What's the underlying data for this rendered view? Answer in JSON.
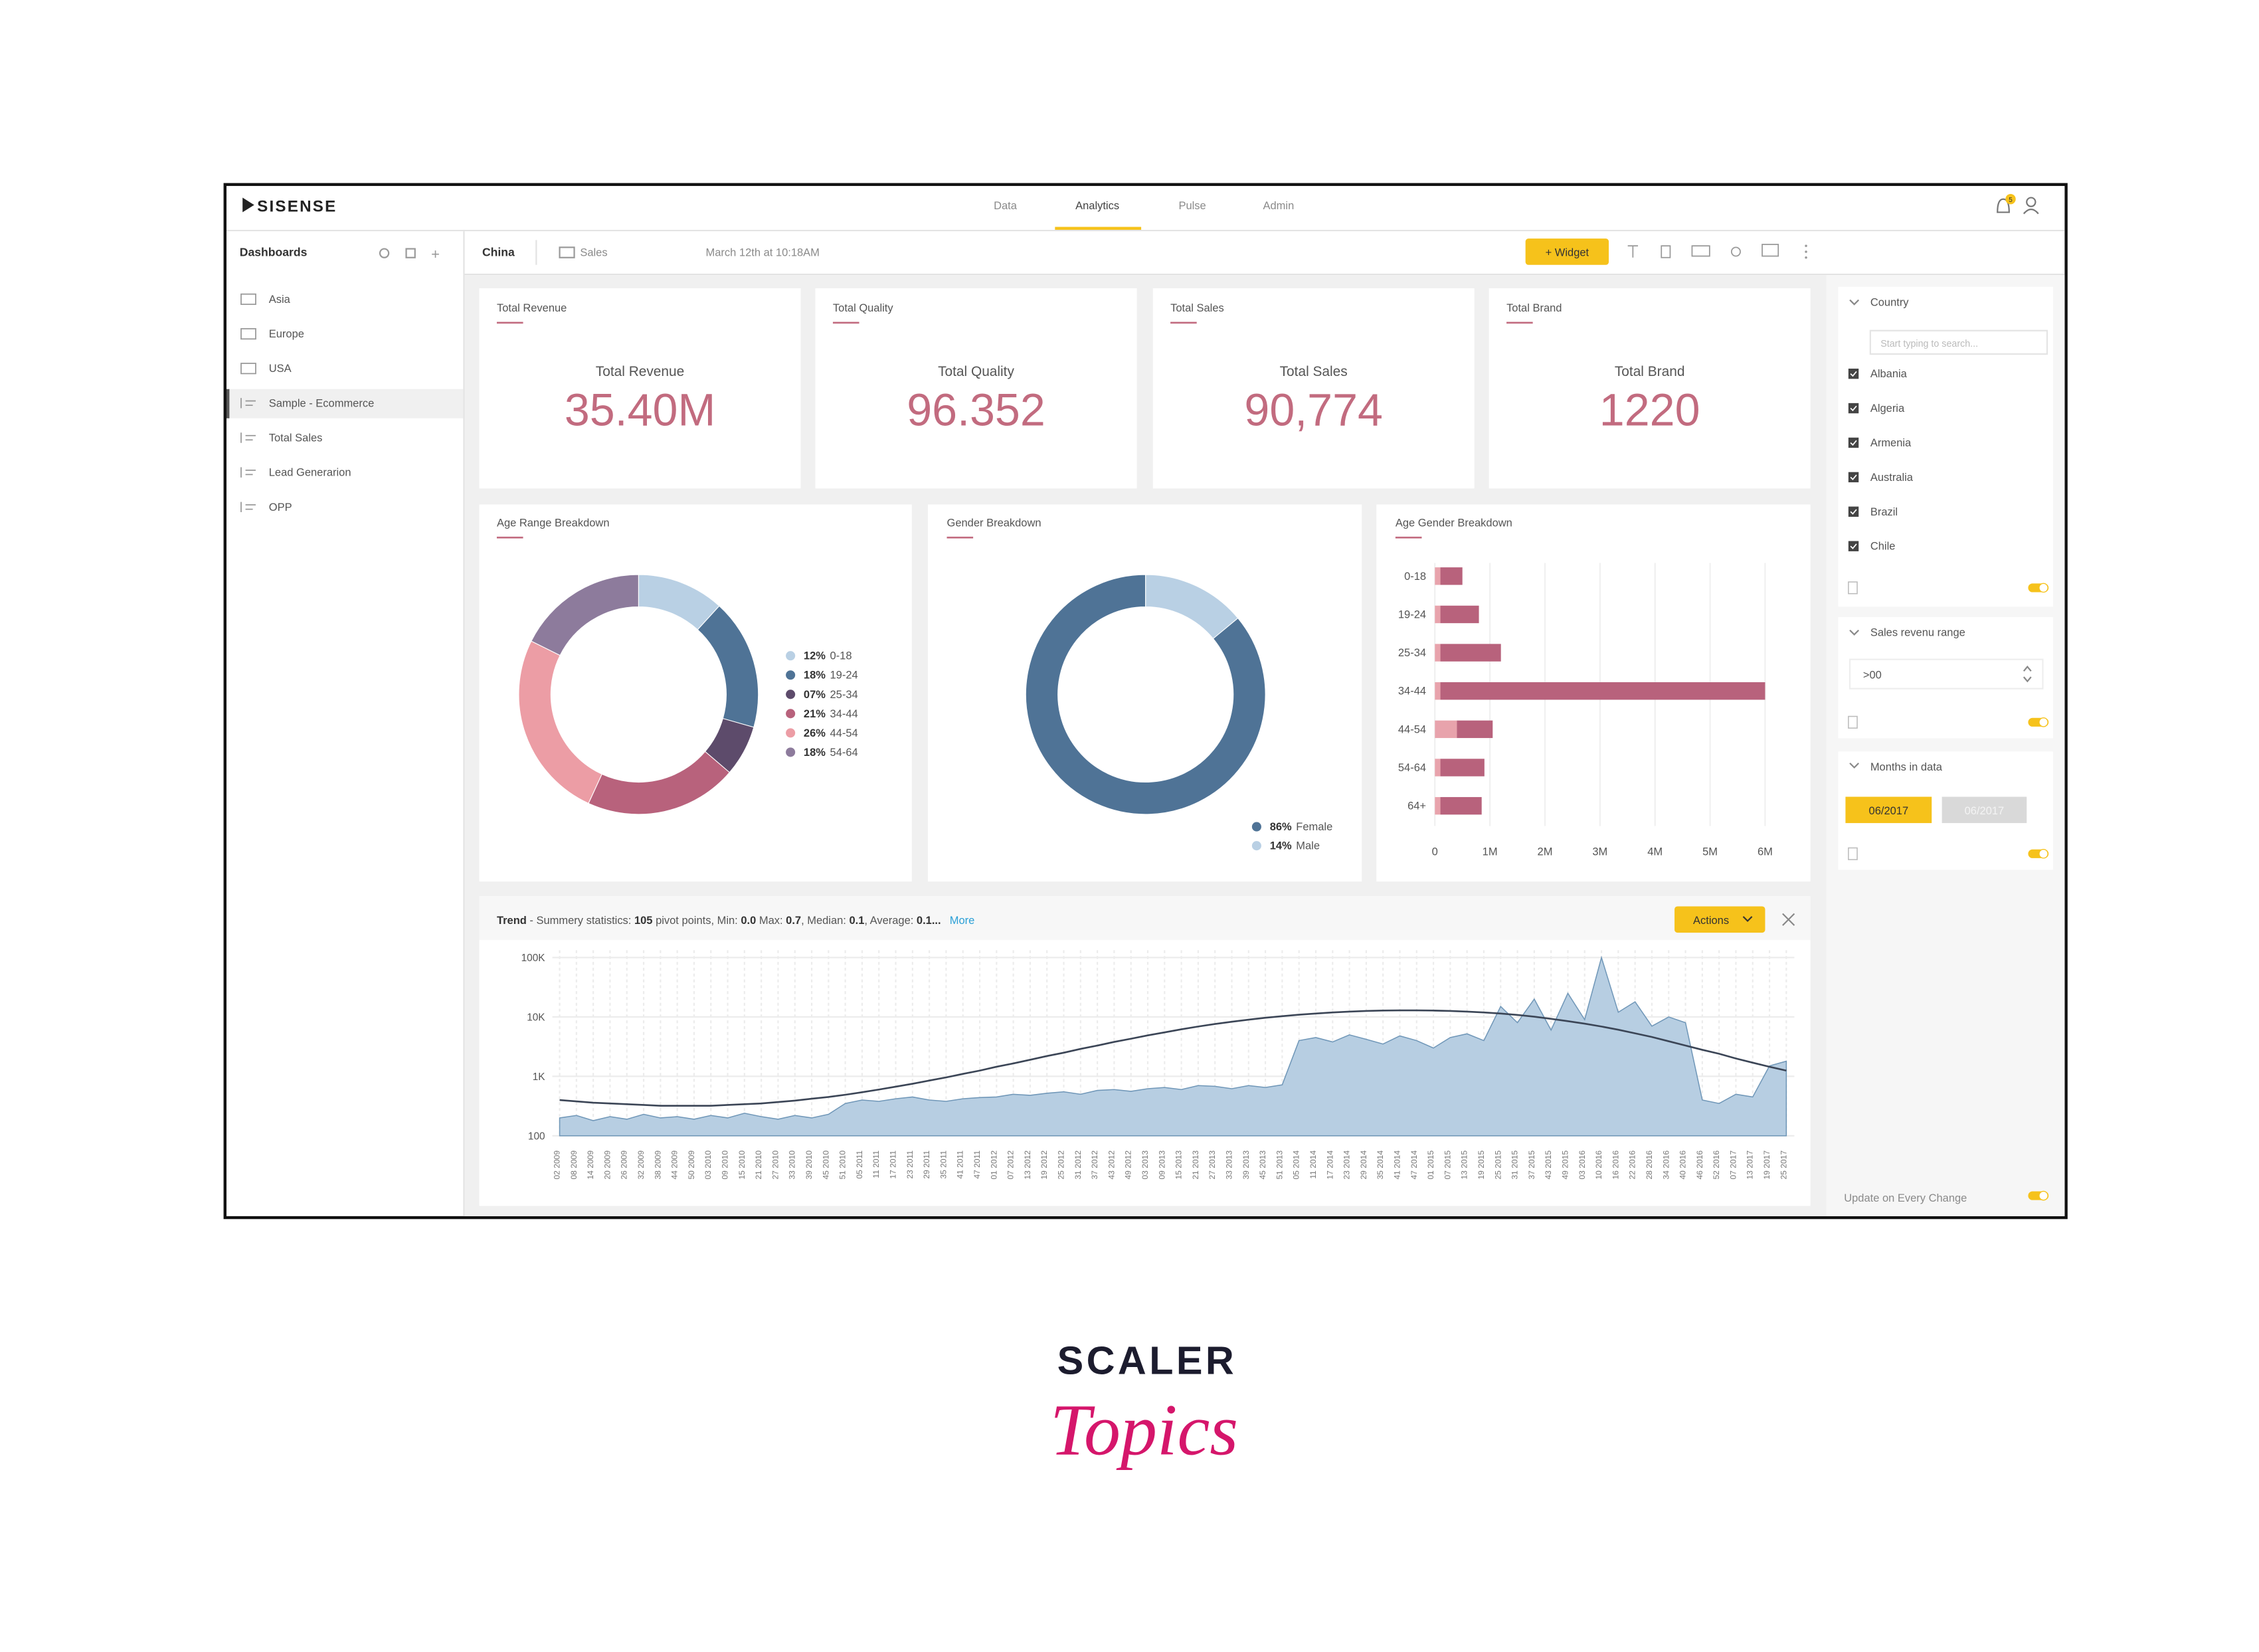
{
  "header": {
    "logo": "SISENSE",
    "tabs": [
      "Data",
      "Analytics",
      "Pulse",
      "Admin"
    ],
    "notifications": "5"
  },
  "sidebar": {
    "title": "Dashboards",
    "items": [
      "Asia",
      "Europe",
      "USA",
      "Sample - Ecommerce",
      "Total Sales",
      "Lead Generarion",
      "OPP"
    ]
  },
  "toolbar": {
    "dashboard": "China",
    "folder": "Sales",
    "date": "March 12th at 10:18AM",
    "widget_button": "+ Widget"
  },
  "kpis": [
    {
      "title": "Total Revenue",
      "label": "Total Revenue",
      "value": "35.40M"
    },
    {
      "title": "Total Quality",
      "label": "Total Quality",
      "value": "96.352"
    },
    {
      "title": "Total Sales",
      "label": "Total Sales",
      "value": "90,774"
    },
    {
      "title": "Total Brand",
      "label": "Total Brand",
      "value": "1220"
    }
  ],
  "age_range": {
    "type": "donut",
    "title": "Age Range Breakdown",
    "categories": [
      "0-18",
      "19-24",
      "25-34",
      "34-44",
      "44-54",
      "54-64"
    ],
    "values": [
      12,
      18,
      7,
      21,
      26,
      18
    ],
    "value_labels": [
      "12%",
      "18%",
      "07%",
      "21%",
      "26%",
      "18%"
    ],
    "colors": [
      "#b9d0e4",
      "#4f7396",
      "#5d4b6b",
      "#b8627c",
      "#ec9da5",
      "#8d7b9c"
    ]
  },
  "gender": {
    "type": "donut",
    "title": "Gender Breakdown",
    "categories": [
      "Female",
      "Male"
    ],
    "values": [
      86,
      14
    ],
    "value_labels": [
      "86%",
      "14%"
    ],
    "colors": [
      "#4f7396",
      "#b9d0e4"
    ]
  },
  "age_gender": {
    "type": "hbar",
    "title": "Age Gender Breakdown",
    "categories": [
      "0-18",
      "19-24",
      "25-34",
      "34-44",
      "44-54",
      "54-64",
      "64+"
    ],
    "series": [
      {
        "color": "#e8a3ac",
        "values": [
          100000,
          100000,
          100000,
          100000,
          400000,
          100000,
          100000
        ]
      },
      {
        "color": "#b8627c",
        "values": [
          400000,
          700000,
          1100000,
          5900000,
          650000,
          800000,
          750000
        ]
      }
    ],
    "xlim": [
      0,
      6000000
    ],
    "xticks": [
      0,
      {
        "value": 1000000,
        "label": "1M"
      },
      {
        "value": 2000000,
        "label": "2M"
      },
      {
        "value": 3000000,
        "label": "3M"
      },
      {
        "value": 4000000,
        "label": "4M"
      },
      {
        "value": 5000000,
        "label": "5M"
      },
      {
        "value": 6000000,
        "label": "6M"
      }
    ],
    "grid": true
  },
  "trend": {
    "type": "area",
    "title": "Trend",
    "summary_parts": [
      " - Summery statistics: ",
      "105",
      " pivot points, Min: ",
      "0.0",
      " Max: ",
      "0.7",
      ", Median: ",
      "0.1",
      ", Average: ",
      "0.1..."
    ],
    "more": "More",
    "actions": "Actions",
    "categories": [
      "02 2009",
      "08 2009",
      "14 2009",
      "20 2009",
      "26 2009",
      "32 2009",
      "38 2009",
      "44 2009",
      "50 2009",
      "03 2010",
      "09 2010",
      "15 2010",
      "21 2010",
      "27 2010",
      "33 2010",
      "39 2010",
      "45 2010",
      "51 2010",
      "05 2011",
      "11 2011",
      "17 2011",
      "23 2011",
      "29 2011",
      "35 2011",
      "41 2011",
      "47 2011",
      "01 2012",
      "07 2012",
      "13 2012",
      "19 2012",
      "25 2012",
      "31 2012",
      "37 2012",
      "43 2012",
      "49 2012",
      "03 2013",
      "09 2013",
      "15 2013",
      "21 2013",
      "27 2013",
      "33 2013",
      "39 2013",
      "45 2013",
      "51 2013",
      "05 2014",
      "11 2014",
      "17 2014",
      "23 2014",
      "29 2014",
      "35 2014",
      "41 2014",
      "47 2014",
      "01 2015",
      "07 2015",
      "13 2015",
      "19 2015",
      "25 2015",
      "31 2015",
      "37 2015",
      "43 2015",
      "49 2015",
      "03 2016",
      "10 2016",
      "16 2016",
      "22 2016",
      "28 2016",
      "34 2016",
      "40 2016",
      "46 2016",
      "52 2016",
      "07 2017",
      "13 2017",
      "19 2017",
      "25 2017"
    ],
    "series": [
      {
        "color": "#b7cee2",
        "values": [
          200,
          220,
          180,
          210,
          190,
          230,
          200,
          210,
          190,
          220,
          200,
          240,
          210,
          190,
          220,
          200,
          230,
          350,
          400,
          380,
          420,
          450,
          400,
          380,
          420,
          440,
          450,
          500,
          480,
          520,
          550,
          500,
          580,
          600,
          560,
          620,
          650,
          600,
          700,
          680,
          620,
          700,
          650,
          720,
          4000,
          4500,
          3800,
          5000,
          4200,
          3500,
          4800,
          4000,
          3000,
          4500,
          5200,
          4000,
          15000,
          8000,
          20000,
          6000,
          25000,
          9000,
          100000,
          12000,
          18000,
          7000,
          10000,
          8000,
          400,
          350,
          500,
          450,
          1500,
          1800
        ]
      },
      {
        "color": "#3b4556",
        "values": [
          400,
          380,
          360,
          350,
          340,
          330,
          320,
          320,
          320,
          320,
          330,
          340,
          350,
          370,
          390,
          420,
          450,
          490,
          540,
          600,
          670,
          750,
          850,
          960,
          1100,
          1250,
          1450,
          1650,
          1900,
          2200,
          2500,
          2900,
          3300,
          3800,
          4300,
          4900,
          5500,
          6200,
          6900,
          7600,
          8300,
          9000,
          9700,
          10300,
          10900,
          11400,
          11900,
          12300,
          12600,
          12800,
          12900,
          12900,
          12800,
          12600,
          12300,
          11900,
          11400,
          10800,
          10100,
          9300,
          8500,
          7700,
          6900,
          6100,
          5300,
          4600,
          3900,
          3300,
          2800,
          2400,
          2000,
          1700,
          1450,
          1250
        ]
      }
    ],
    "ylim": [
      100,
      100000
    ],
    "yticks": [
      100,
      {
        "value": 1000,
        "label": "1K"
      },
      {
        "value": 10000,
        "label": "10K"
      },
      {
        "value": 100000,
        "label": "100K"
      }
    ],
    "log_scale": true
  },
  "filters": {
    "country": {
      "title": "Country",
      "search_placeholder": "Start typing to search...",
      "items": [
        "Albania",
        "Algeria",
        "Armenia",
        "Australia",
        "Brazil",
        "Chile"
      ]
    },
    "sales_range": {
      "title": "Sales revenu range",
      "value": ">00"
    },
    "months": {
      "title": "Months in data",
      "from": "06/2017",
      "to": "06/2017"
    },
    "update": "Update on Every Change"
  },
  "footer": {
    "brand": "SCALER",
    "sub": "Topics"
  }
}
